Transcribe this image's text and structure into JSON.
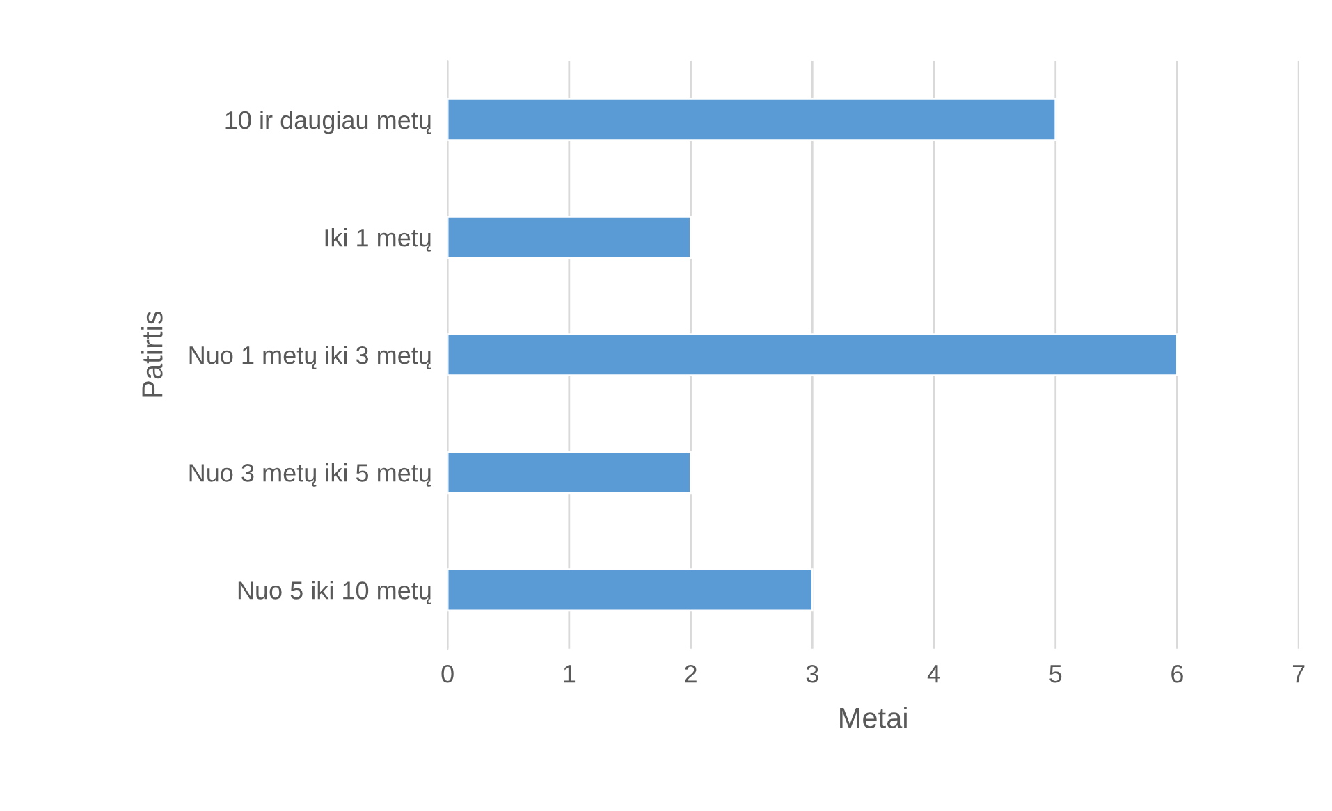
{
  "chart_data": {
    "type": "bar",
    "orientation": "horizontal",
    "xlabel": "Metai",
    "ylabel": "Patirtis",
    "categories": [
      "10 ir daugiau metų",
      "Iki 1 metų",
      "Nuo 1 metų iki 3 metų",
      "Nuo 3 metų iki 5 metų",
      "Nuo 5 iki 10 metų"
    ],
    "values": [
      5,
      2,
      6,
      2,
      3
    ],
    "color": "#5b9bd5",
    "xlim": [
      0,
      7
    ],
    "xticks": [
      0,
      1,
      2,
      3,
      4,
      5,
      6,
      7
    ],
    "grid": "x",
    "legend": false
  }
}
